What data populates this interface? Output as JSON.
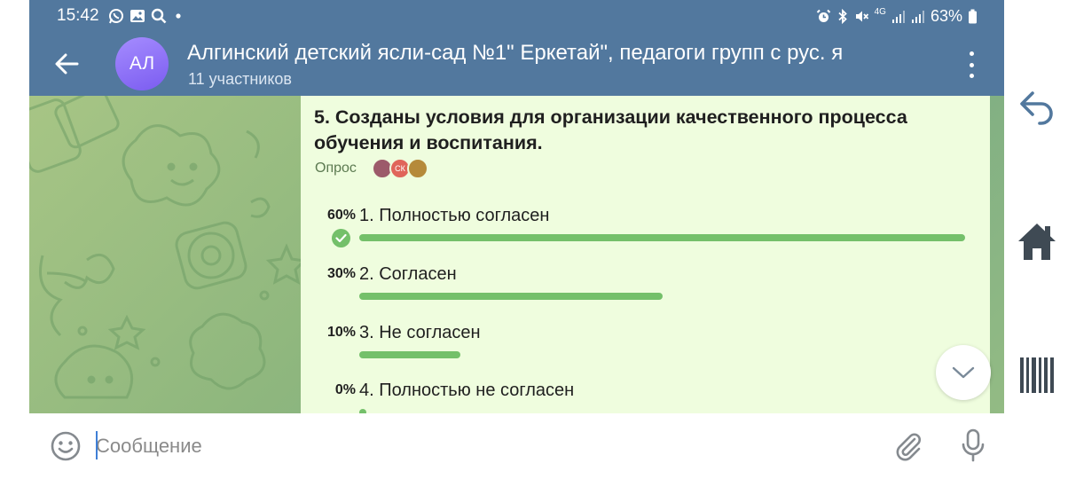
{
  "status_bar": {
    "time": "15:42",
    "left_icons": [
      "whatsapp-icon",
      "gallery-icon",
      "search-icon",
      "dot-icon"
    ],
    "right_icons": [
      "alarm-icon",
      "bluetooth-icon",
      "mute-icon",
      "network-4g-icon",
      "signal-icon",
      "signal-icon-2"
    ],
    "network_label": "4G",
    "battery": "63%"
  },
  "header": {
    "avatar_initials": "АЛ",
    "avatar_colors": [
      "#a58cff",
      "#7b5cf0"
    ],
    "title": "Алгинский детский ясли-сад №1\" Еркетай\", педагоги групп с рус. я",
    "subtitle": "11 участников",
    "bar_color": "#52789e"
  },
  "poll": {
    "question": "5. Созданы условия для организации качественного процесса обучения и воспитания.",
    "type_label": "Опрос",
    "voter_avatars": [
      {
        "label": "",
        "color": "#9c5a6a"
      },
      {
        "label": "СК",
        "color": "#e0655a"
      },
      {
        "label": "",
        "color": "#b58a3a"
      }
    ],
    "options": [
      {
        "percent": "60%",
        "text": "1. Полностью согласен",
        "share": 0.6,
        "chosen": true
      },
      {
        "percent": "30%",
        "text": "2. Согласен",
        "share": 0.3,
        "chosen": false
      },
      {
        "percent": "10%",
        "text": "3. Не согласен",
        "share": 0.1,
        "chosen": false
      },
      {
        "percent": "0%",
        "text": "4. Полностью не согласен",
        "share": 0.0,
        "chosen": false
      }
    ],
    "bar_color": "#74c06a",
    "bubble_color": "#effdde"
  },
  "input_bar": {
    "placeholder": "Сообщение"
  }
}
